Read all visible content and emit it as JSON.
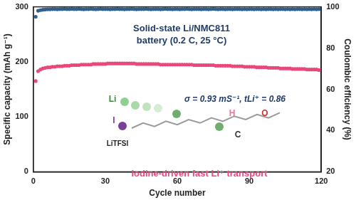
{
  "chart_data": {
    "type": "scatter",
    "x_label": "Cycle number",
    "y_label": "Specific capacity (mAh g⁻¹)",
    "y2_label": "Coulombic efficiency (%)",
    "xlim": [
      0,
      120
    ],
    "xticks": [
      0,
      30,
      60,
      90,
      120
    ],
    "ylim": [
      0,
      300
    ],
    "yticks": [
      0,
      100,
      200,
      300
    ],
    "y2lim": [
      20,
      100
    ],
    "y2ticks": [
      20,
      40,
      60,
      80,
      100
    ],
    "grid": false,
    "marker": "circle",
    "annotations": [
      "Solid-state Li/NMC811",
      "battery (0.2 C, 25 °C)",
      "σ = 0.93 mS⁻¹, tLi⁺ = 0.86",
      "LiTFSI",
      "Iodine-driven fast Li⁺ transport"
    ],
    "atom_labels": [
      "Li",
      "I",
      "H",
      "C",
      "O"
    ],
    "x": [
      1,
      2,
      3,
      4,
      5,
      6,
      7,
      8,
      9,
      10,
      11,
      12,
      13,
      14,
      15,
      16,
      17,
      18,
      19,
      20,
      21,
      22,
      23,
      24,
      25,
      26,
      27,
      28,
      29,
      30,
      31,
      32,
      33,
      34,
      35,
      36,
      37,
      38,
      39,
      40,
      41,
      42,
      43,
      44,
      45,
      46,
      47,
      48,
      49,
      50,
      51,
      52,
      53,
      54,
      55,
      56,
      57,
      58,
      59,
      60,
      61,
      62,
      63,
      64,
      65,
      66,
      67,
      68,
      69,
      70,
      71,
      72,
      73,
      74,
      75,
      76,
      77,
      78,
      79,
      80,
      81,
      82,
      83,
      84,
      85,
      86,
      87,
      88,
      89,
      90,
      91,
      92,
      93,
      94,
      95,
      96,
      97,
      98,
      99,
      100,
      101,
      102,
      103,
      104,
      105,
      106,
      107,
      108,
      109,
      110,
      111,
      112,
      113,
      114,
      115,
      116,
      117,
      118,
      119,
      120
    ],
    "series": [
      {
        "color": "#e8487a",
        "values": [
          165,
          183,
          186,
          188,
          189,
          190,
          190,
          191,
          191,
          192,
          192,
          192,
          193,
          193,
          193,
          194,
          194,
          194,
          194,
          195,
          195,
          195,
          195,
          195,
          196,
          196,
          196,
          196,
          196,
          196,
          197,
          197,
          197,
          197,
          197,
          197,
          197,
          197,
          197,
          197,
          197,
          197,
          196,
          196,
          196,
          196,
          196,
          196,
          196,
          196,
          196,
          196,
          195,
          195,
          195,
          195,
          195,
          195,
          195,
          195,
          195,
          195,
          195,
          195,
          195,
          195,
          194,
          194,
          194,
          194,
          194,
          194,
          194,
          194,
          194,
          193,
          193,
          193,
          193,
          193,
          193,
          193,
          192,
          192,
          192,
          192,
          192,
          191,
          191,
          191,
          191,
          191,
          190,
          190,
          190,
          190,
          190,
          189,
          189,
          189,
          189,
          189,
          188,
          188,
          188,
          188,
          188,
          187,
          187,
          187,
          187,
          187,
          187,
          186,
          186,
          186,
          186,
          186,
          185,
          185
        ]
      },
      {
        "color": "#2f5f8f",
        "axis": "y2",
        "values": [
          95.2,
          98.1,
          98.4,
          98.6,
          98.7,
          98.8,
          98.8,
          98.9,
          98.9,
          98.8,
          98.9,
          98.9,
          99.0,
          98.9,
          98.9,
          99.0,
          98.9,
          98.9,
          99.0,
          98.9,
          98.8,
          98.9,
          98.9,
          99.0,
          98.9,
          98.8,
          98.9,
          99.0,
          98.9,
          98.9,
          98.9,
          98.8,
          98.9,
          98.9,
          99.0,
          98.9,
          98.9,
          98.8,
          98.9,
          98.9,
          99.0,
          98.9,
          98.8,
          98.9,
          98.9,
          98.9,
          99.0,
          98.9,
          98.8,
          98.9,
          98.9,
          98.9,
          98.8,
          98.9,
          99.0,
          98.9,
          98.9,
          98.8,
          98.9,
          98.9,
          98.8,
          98.9,
          98.9,
          99.0,
          98.9,
          98.8,
          98.9,
          98.9,
          98.9,
          98.8,
          98.9,
          98.9,
          98.8,
          98.9,
          99.0,
          98.9,
          98.8,
          98.9,
          98.9,
          98.8,
          98.9,
          98.9,
          98.8,
          98.9,
          98.9,
          98.9,
          98.8,
          98.9,
          98.8,
          98.9,
          98.9,
          98.8,
          98.9,
          98.9,
          98.8,
          98.9,
          98.8,
          98.9,
          98.9,
          98.8,
          98.9,
          98.8,
          98.9,
          98.9,
          98.8,
          98.9,
          98.8,
          98.9,
          98.8,
          98.9,
          98.9,
          98.8,
          98.9,
          98.8,
          98.9,
          98.8,
          98.9,
          98.8,
          98.9,
          98.8
        ]
      }
    ]
  }
}
